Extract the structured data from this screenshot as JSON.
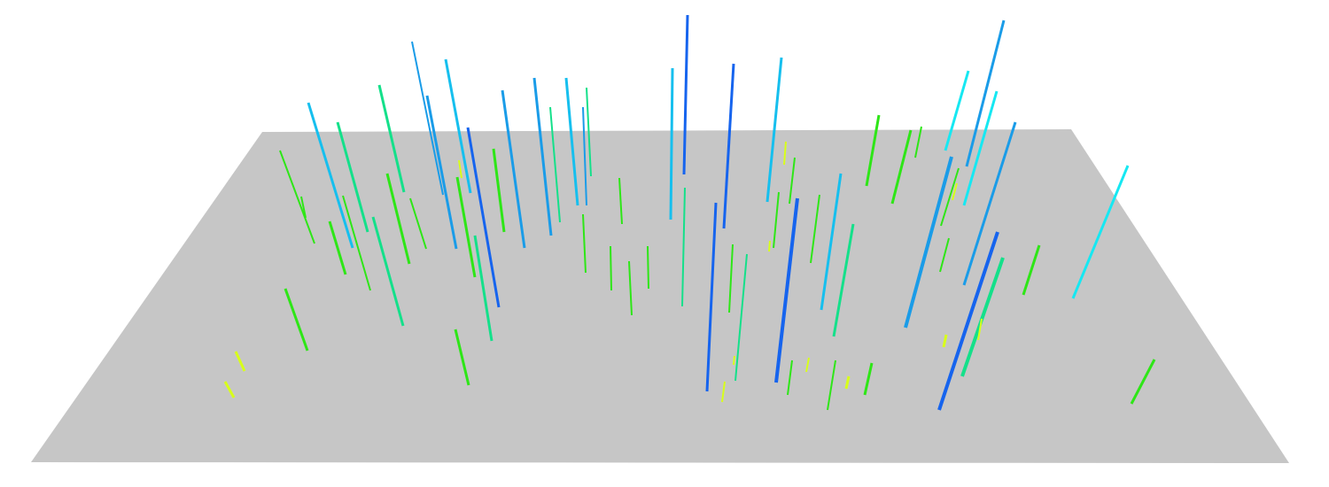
{
  "scene": {
    "plane_color": "#c6c6c6",
    "background": "#ffffff",
    "colors": {
      "yellow": "#d8ff1a",
      "green": "#2ee617",
      "green2": "#22d83a",
      "teal": "#14e08a",
      "cyan": "#16e8f2",
      "skyblue": "#16bfee",
      "blue": "#1a9ce8",
      "deepblue": "#1664ee"
    }
  }
}
